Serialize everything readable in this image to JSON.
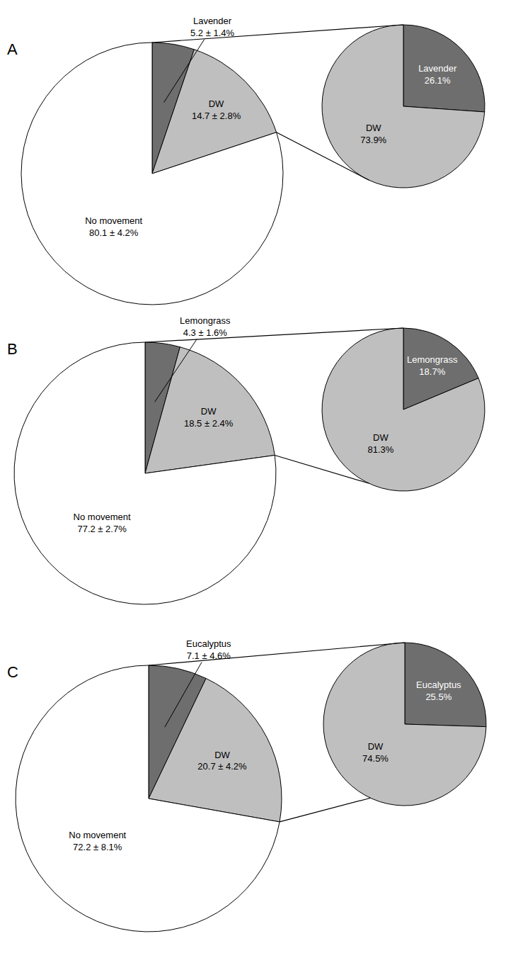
{
  "chart_data": [
    {
      "type": "pie",
      "title": "A",
      "categories": [
        "Lavender",
        "DW",
        "No movement"
      ],
      "values": [
        5.2,
        14.7,
        80.1
      ],
      "errors": [
        1.4,
        2.8,
        4.2
      ],
      "value_labels": [
        "5.2 ± 1.4%",
        "14.7 ± 2.8%",
        "80.1 ± 4.2%"
      ],
      "colors": [
        "#6e6e6e",
        "#bfbfbf",
        "#ffffff"
      ],
      "data_labels": true
    },
    {
      "type": "pie",
      "categories": [
        "Lavender",
        "DW"
      ],
      "values": [
        26.1,
        73.9
      ],
      "value_labels": [
        "26.1%",
        "73.9%"
      ],
      "colors": [
        "#6e6e6e",
        "#bfbfbf"
      ],
      "data_labels": true
    },
    {
      "type": "pie",
      "title": "B",
      "categories": [
        "Lemongrass",
        "DW",
        "No movement"
      ],
      "values": [
        4.3,
        18.5,
        77.2
      ],
      "errors": [
        1.6,
        2.4,
        2.7
      ],
      "value_labels": [
        "4.3 ± 1.6%",
        "18.5 ± 2.4%",
        "77.2 ± 2.7%"
      ],
      "colors": [
        "#6e6e6e",
        "#bfbfbf",
        "#ffffff"
      ],
      "data_labels": true
    },
    {
      "type": "pie",
      "categories": [
        "Lemongrass",
        "DW"
      ],
      "values": [
        18.7,
        81.3
      ],
      "value_labels": [
        "18.7%",
        "81.3%"
      ],
      "colors": [
        "#6e6e6e",
        "#bfbfbf"
      ],
      "data_labels": true
    },
    {
      "type": "pie",
      "title": "C",
      "categories": [
        "Eucalyptus",
        "DW",
        "No movement"
      ],
      "values": [
        7.1,
        20.7,
        72.2
      ],
      "errors": [
        4.6,
        4.2,
        8.1
      ],
      "value_labels": [
        "7.1 ± 4.6%",
        "20.7 ± 4.2%",
        "72.2 ± 8.1%"
      ],
      "colors": [
        "#6e6e6e",
        "#bfbfbf",
        "#ffffff"
      ],
      "data_labels": true
    },
    {
      "type": "pie",
      "categories": [
        "Eucalyptus",
        "DW"
      ],
      "values": [
        25.5,
        74.5
      ],
      "value_labels": [
        "25.5%",
        "74.5%"
      ],
      "colors": [
        "#6e6e6e",
        "#bfbfbf"
      ],
      "data_labels": true
    }
  ]
}
